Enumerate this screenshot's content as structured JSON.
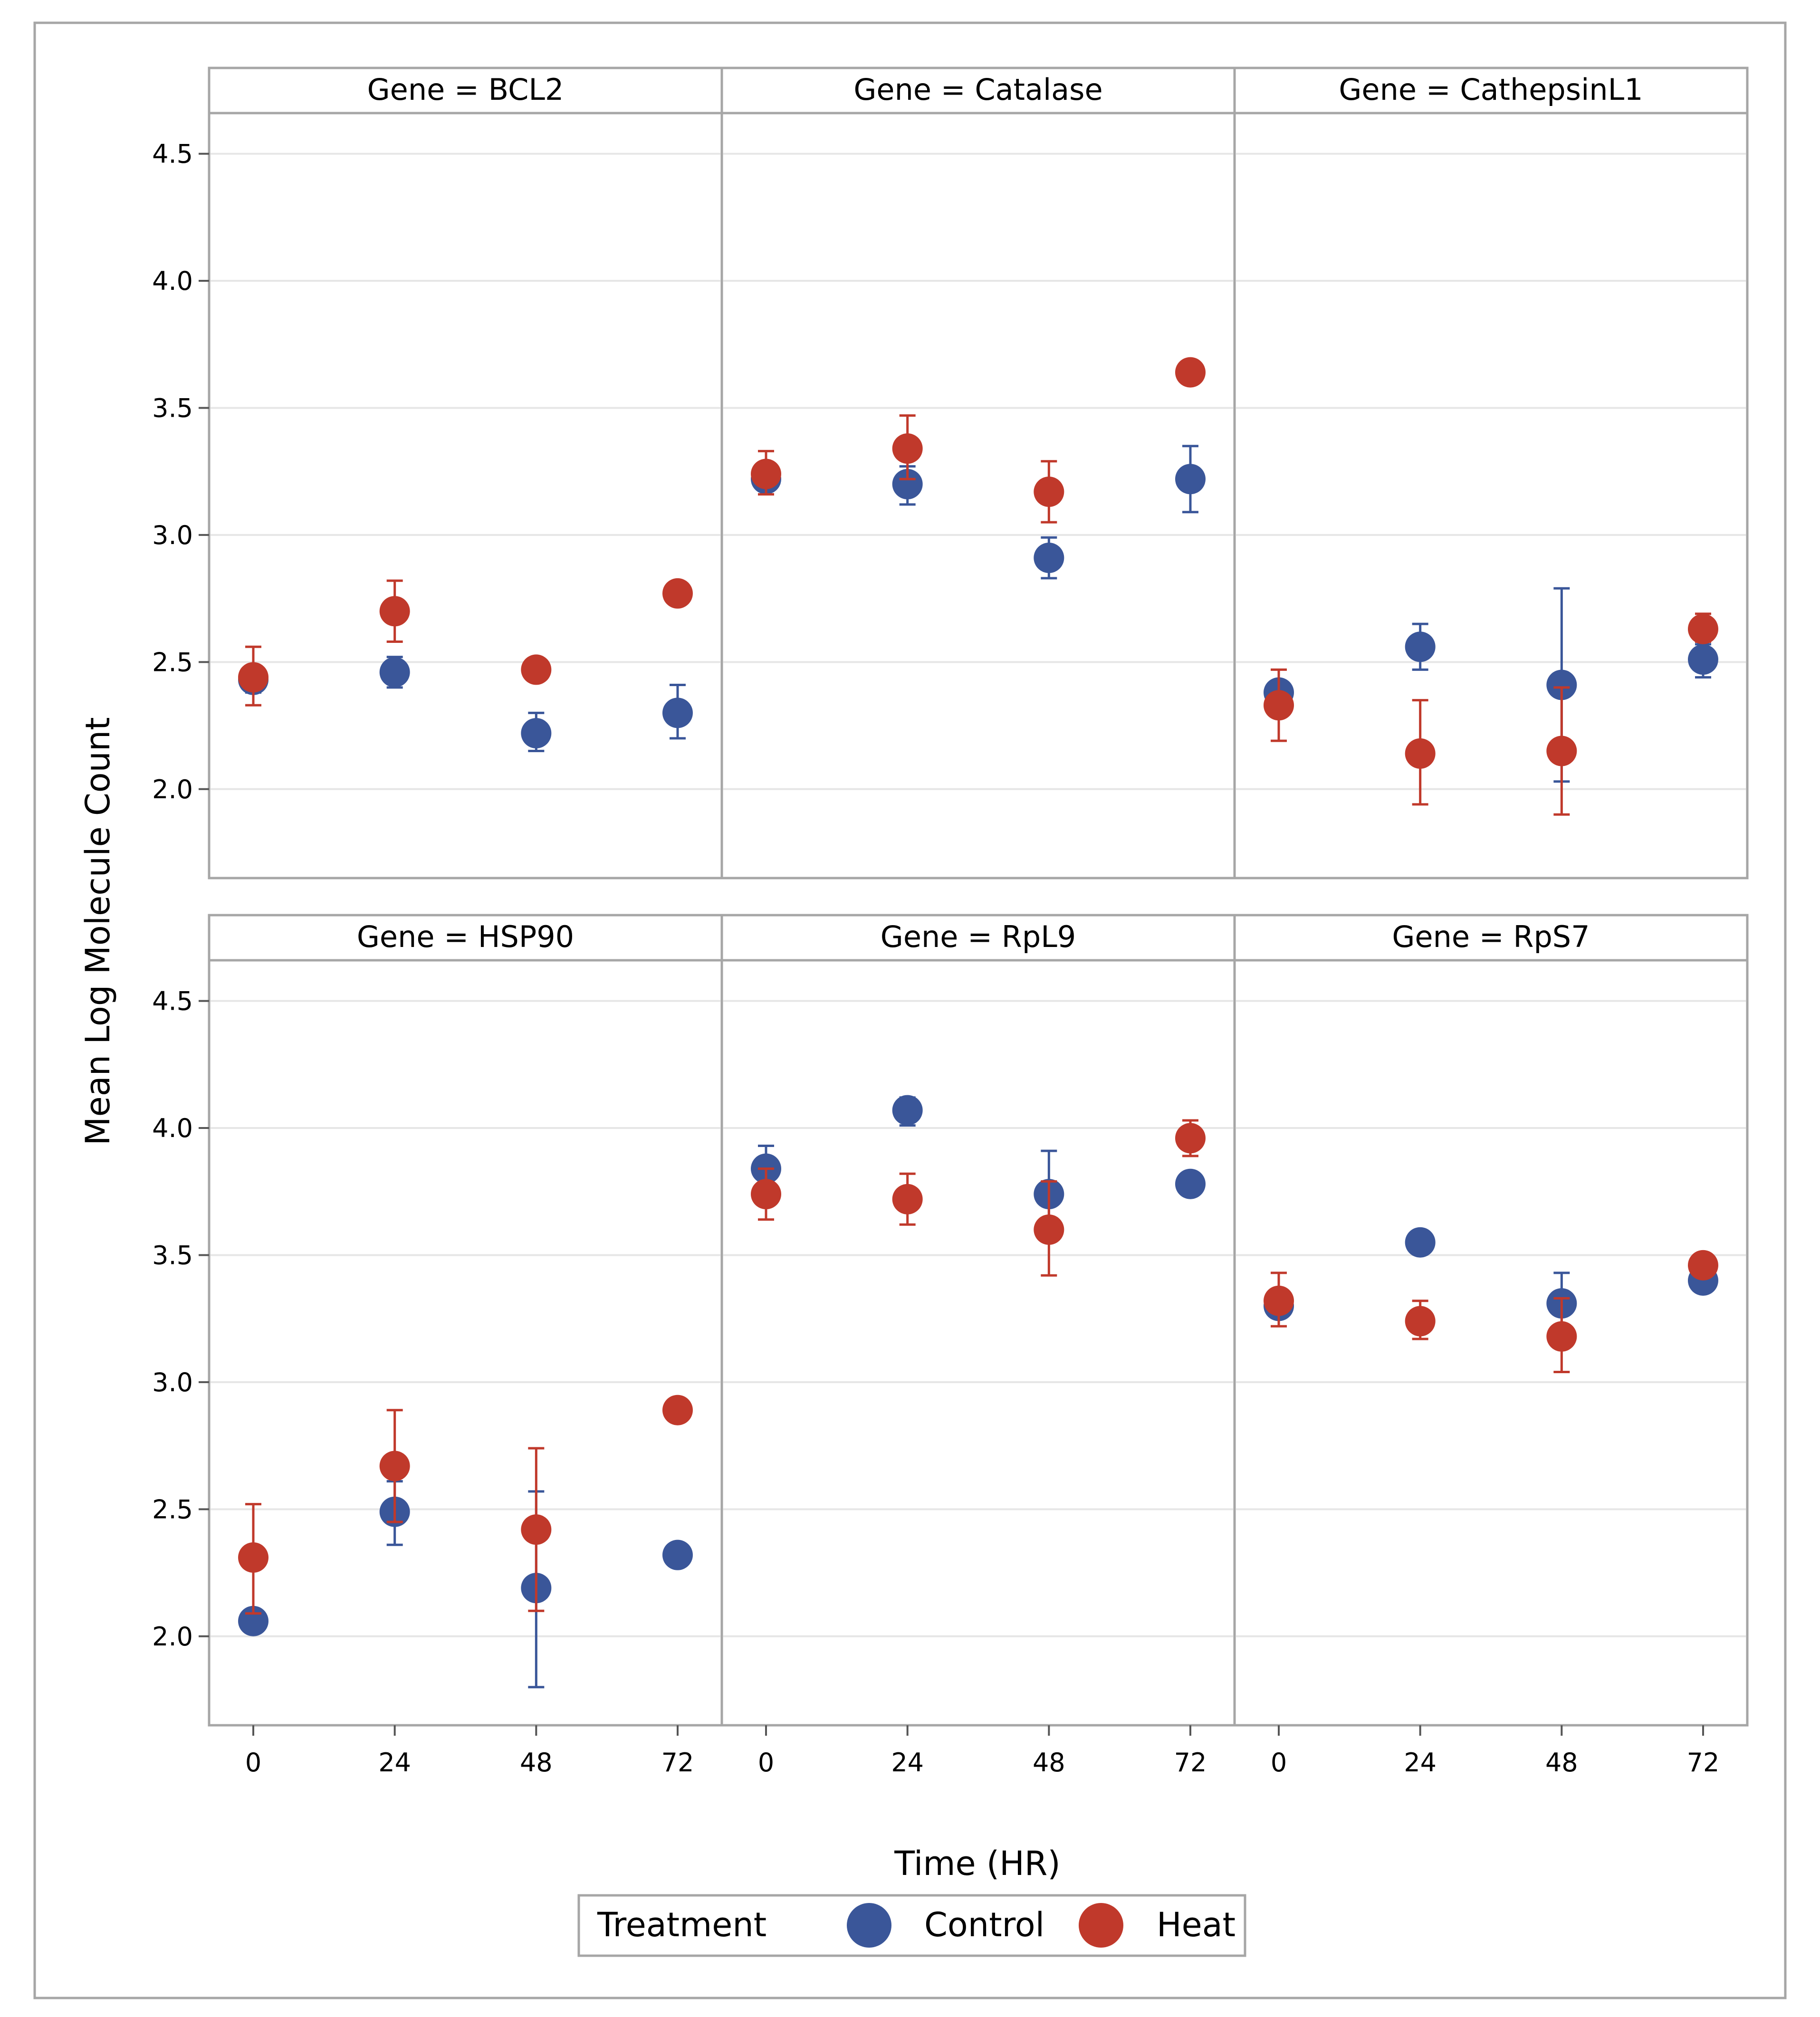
{
  "chart_data": {
    "type": "scatter",
    "subtype": "panel-scatter-with-error-bars",
    "xlabel": "Time (HR)",
    "ylabel": "Mean Log Molecule Count",
    "x_ticks": [
      "0",
      "24",
      "48",
      "72"
    ],
    "x_values": [
      0,
      24,
      48,
      72
    ],
    "y_ticks": [
      "2.0",
      "2.5",
      "3.0",
      "3.5",
      "4.0",
      "4.5"
    ],
    "y_tick_values": [
      2.0,
      2.5,
      3.0,
      3.5,
      4.0,
      4.5
    ],
    "ylim": [
      1.65,
      4.66
    ],
    "xlim": [
      -7.5,
      79.5
    ],
    "legend": {
      "title": "Treatment",
      "entries": [
        {
          "name": "Control",
          "color": "#3a5699"
        },
        {
          "name": "Heat",
          "color": "#c0392b"
        }
      ]
    },
    "panels": [
      {
        "title": "Gene = BCL2",
        "series": [
          {
            "name": "Control",
            "color": "#3a5699",
            "points": [
              {
                "x": 0,
                "y": 2.43,
                "lo": 2.38,
                "hi": 2.48
              },
              {
                "x": 24,
                "y": 2.46,
                "lo": 2.4,
                "hi": 2.52
              },
              {
                "x": 48,
                "y": 2.22,
                "lo": 2.15,
                "hi": 2.3
              },
              {
                "x": 72,
                "y": 2.3,
                "lo": 2.2,
                "hi": 2.41
              }
            ]
          },
          {
            "name": "Heat",
            "color": "#c0392b",
            "points": [
              {
                "x": 0,
                "y": 2.44,
                "lo": 2.33,
                "hi": 2.56
              },
              {
                "x": 24,
                "y": 2.7,
                "lo": 2.58,
                "hi": 2.82
              },
              {
                "x": 48,
                "y": 2.47,
                "lo": 2.47,
                "hi": 2.47
              },
              {
                "x": 72,
                "y": 2.77,
                "lo": 2.77,
                "hi": 2.77
              }
            ]
          }
        ]
      },
      {
        "title": "Gene = Catalase",
        "series": [
          {
            "name": "Control",
            "color": "#3a5699",
            "points": [
              {
                "x": 0,
                "y": 3.22,
                "lo": 3.2,
                "hi": 3.24
              },
              {
                "x": 24,
                "y": 3.2,
                "lo": 3.12,
                "hi": 3.27
              },
              {
                "x": 48,
                "y": 2.91,
                "lo": 2.83,
                "hi": 2.99
              },
              {
                "x": 72,
                "y": 3.22,
                "lo": 3.09,
                "hi": 3.35
              }
            ]
          },
          {
            "name": "Heat",
            "color": "#c0392b",
            "points": [
              {
                "x": 0,
                "y": 3.24,
                "lo": 3.16,
                "hi": 3.33
              },
              {
                "x": 24,
                "y": 3.34,
                "lo": 3.22,
                "hi": 3.47
              },
              {
                "x": 48,
                "y": 3.17,
                "lo": 3.05,
                "hi": 3.29
              },
              {
                "x": 72,
                "y": 3.64,
                "lo": 3.64,
                "hi": 3.64
              }
            ]
          }
        ]
      },
      {
        "title": "Gene = CathepsinL1",
        "series": [
          {
            "name": "Control",
            "color": "#3a5699",
            "points": [
              {
                "x": 0,
                "y": 2.38,
                "lo": 2.35,
                "hi": 2.42
              },
              {
                "x": 24,
                "y": 2.56,
                "lo": 2.47,
                "hi": 2.65
              },
              {
                "x": 48,
                "y": 2.41,
                "lo": 2.03,
                "hi": 2.79
              },
              {
                "x": 72,
                "y": 2.51,
                "lo": 2.44,
                "hi": 2.57
              }
            ]
          },
          {
            "name": "Heat",
            "color": "#c0392b",
            "points": [
              {
                "x": 0,
                "y": 2.33,
                "lo": 2.19,
                "hi": 2.47
              },
              {
                "x": 24,
                "y": 2.14,
                "lo": 1.94,
                "hi": 2.35
              },
              {
                "x": 48,
                "y": 2.15,
                "lo": 1.9,
                "hi": 2.4
              },
              {
                "x": 72,
                "y": 2.63,
                "lo": 2.58,
                "hi": 2.69
              }
            ]
          }
        ]
      },
      {
        "title": "Gene = HSP90",
        "series": [
          {
            "name": "Control",
            "color": "#3a5699",
            "points": [
              {
                "x": 0,
                "y": 2.06,
                "lo": 2.06,
                "hi": 2.06
              },
              {
                "x": 24,
                "y": 2.49,
                "lo": 2.36,
                "hi": 2.61
              },
              {
                "x": 48,
                "y": 2.19,
                "lo": 1.8,
                "hi": 2.57
              },
              {
                "x": 72,
                "y": 2.32,
                "lo": 2.29,
                "hi": 2.36
              }
            ]
          },
          {
            "name": "Heat",
            "color": "#c0392b",
            "points": [
              {
                "x": 0,
                "y": 2.31,
                "lo": 2.09,
                "hi": 2.52
              },
              {
                "x": 24,
                "y": 2.67,
                "lo": 2.45,
                "hi": 2.89
              },
              {
                "x": 48,
                "y": 2.42,
                "lo": 2.1,
                "hi": 2.74
              },
              {
                "x": 72,
                "y": 2.89,
                "lo": 2.89,
                "hi": 2.89
              }
            ]
          }
        ]
      },
      {
        "title": "Gene = RpL9",
        "series": [
          {
            "name": "Control",
            "color": "#3a5699",
            "points": [
              {
                "x": 0,
                "y": 3.84,
                "lo": 3.75,
                "hi": 3.93
              },
              {
                "x": 24,
                "y": 4.07,
                "lo": 4.01,
                "hi": 4.12
              },
              {
                "x": 48,
                "y": 3.74,
                "lo": 3.57,
                "hi": 3.91
              },
              {
                "x": 72,
                "y": 3.78,
                "lo": 3.78,
                "hi": 3.78
              }
            ]
          },
          {
            "name": "Heat",
            "color": "#c0392b",
            "points": [
              {
                "x": 0,
                "y": 3.74,
                "lo": 3.64,
                "hi": 3.84
              },
              {
                "x": 24,
                "y": 3.72,
                "lo": 3.62,
                "hi": 3.82
              },
              {
                "x": 48,
                "y": 3.6,
                "lo": 3.42,
                "hi": 3.79
              },
              {
                "x": 72,
                "y": 3.96,
                "lo": 3.89,
                "hi": 4.03
              }
            ]
          }
        ]
      },
      {
        "title": "Gene = RpS7",
        "series": [
          {
            "name": "Control",
            "color": "#3a5699",
            "points": [
              {
                "x": 0,
                "y": 3.3,
                "lo": 3.27,
                "hi": 3.34
              },
              {
                "x": 24,
                "y": 3.55,
                "lo": 3.55,
                "hi": 3.55
              },
              {
                "x": 48,
                "y": 3.31,
                "lo": 3.2,
                "hi": 3.43
              },
              {
                "x": 72,
                "y": 3.4,
                "lo": 3.37,
                "hi": 3.43
              }
            ]
          },
          {
            "name": "Heat",
            "color": "#c0392b",
            "points": [
              {
                "x": 0,
                "y": 3.32,
                "lo": 3.22,
                "hi": 3.43
              },
              {
                "x": 24,
                "y": 3.24,
                "lo": 3.17,
                "hi": 3.32
              },
              {
                "x": 48,
                "y": 3.18,
                "lo": 3.04,
                "hi": 3.33
              },
              {
                "x": 72,
                "y": 3.46,
                "lo": 3.46,
                "hi": 3.46
              }
            ]
          }
        ]
      }
    ]
  }
}
